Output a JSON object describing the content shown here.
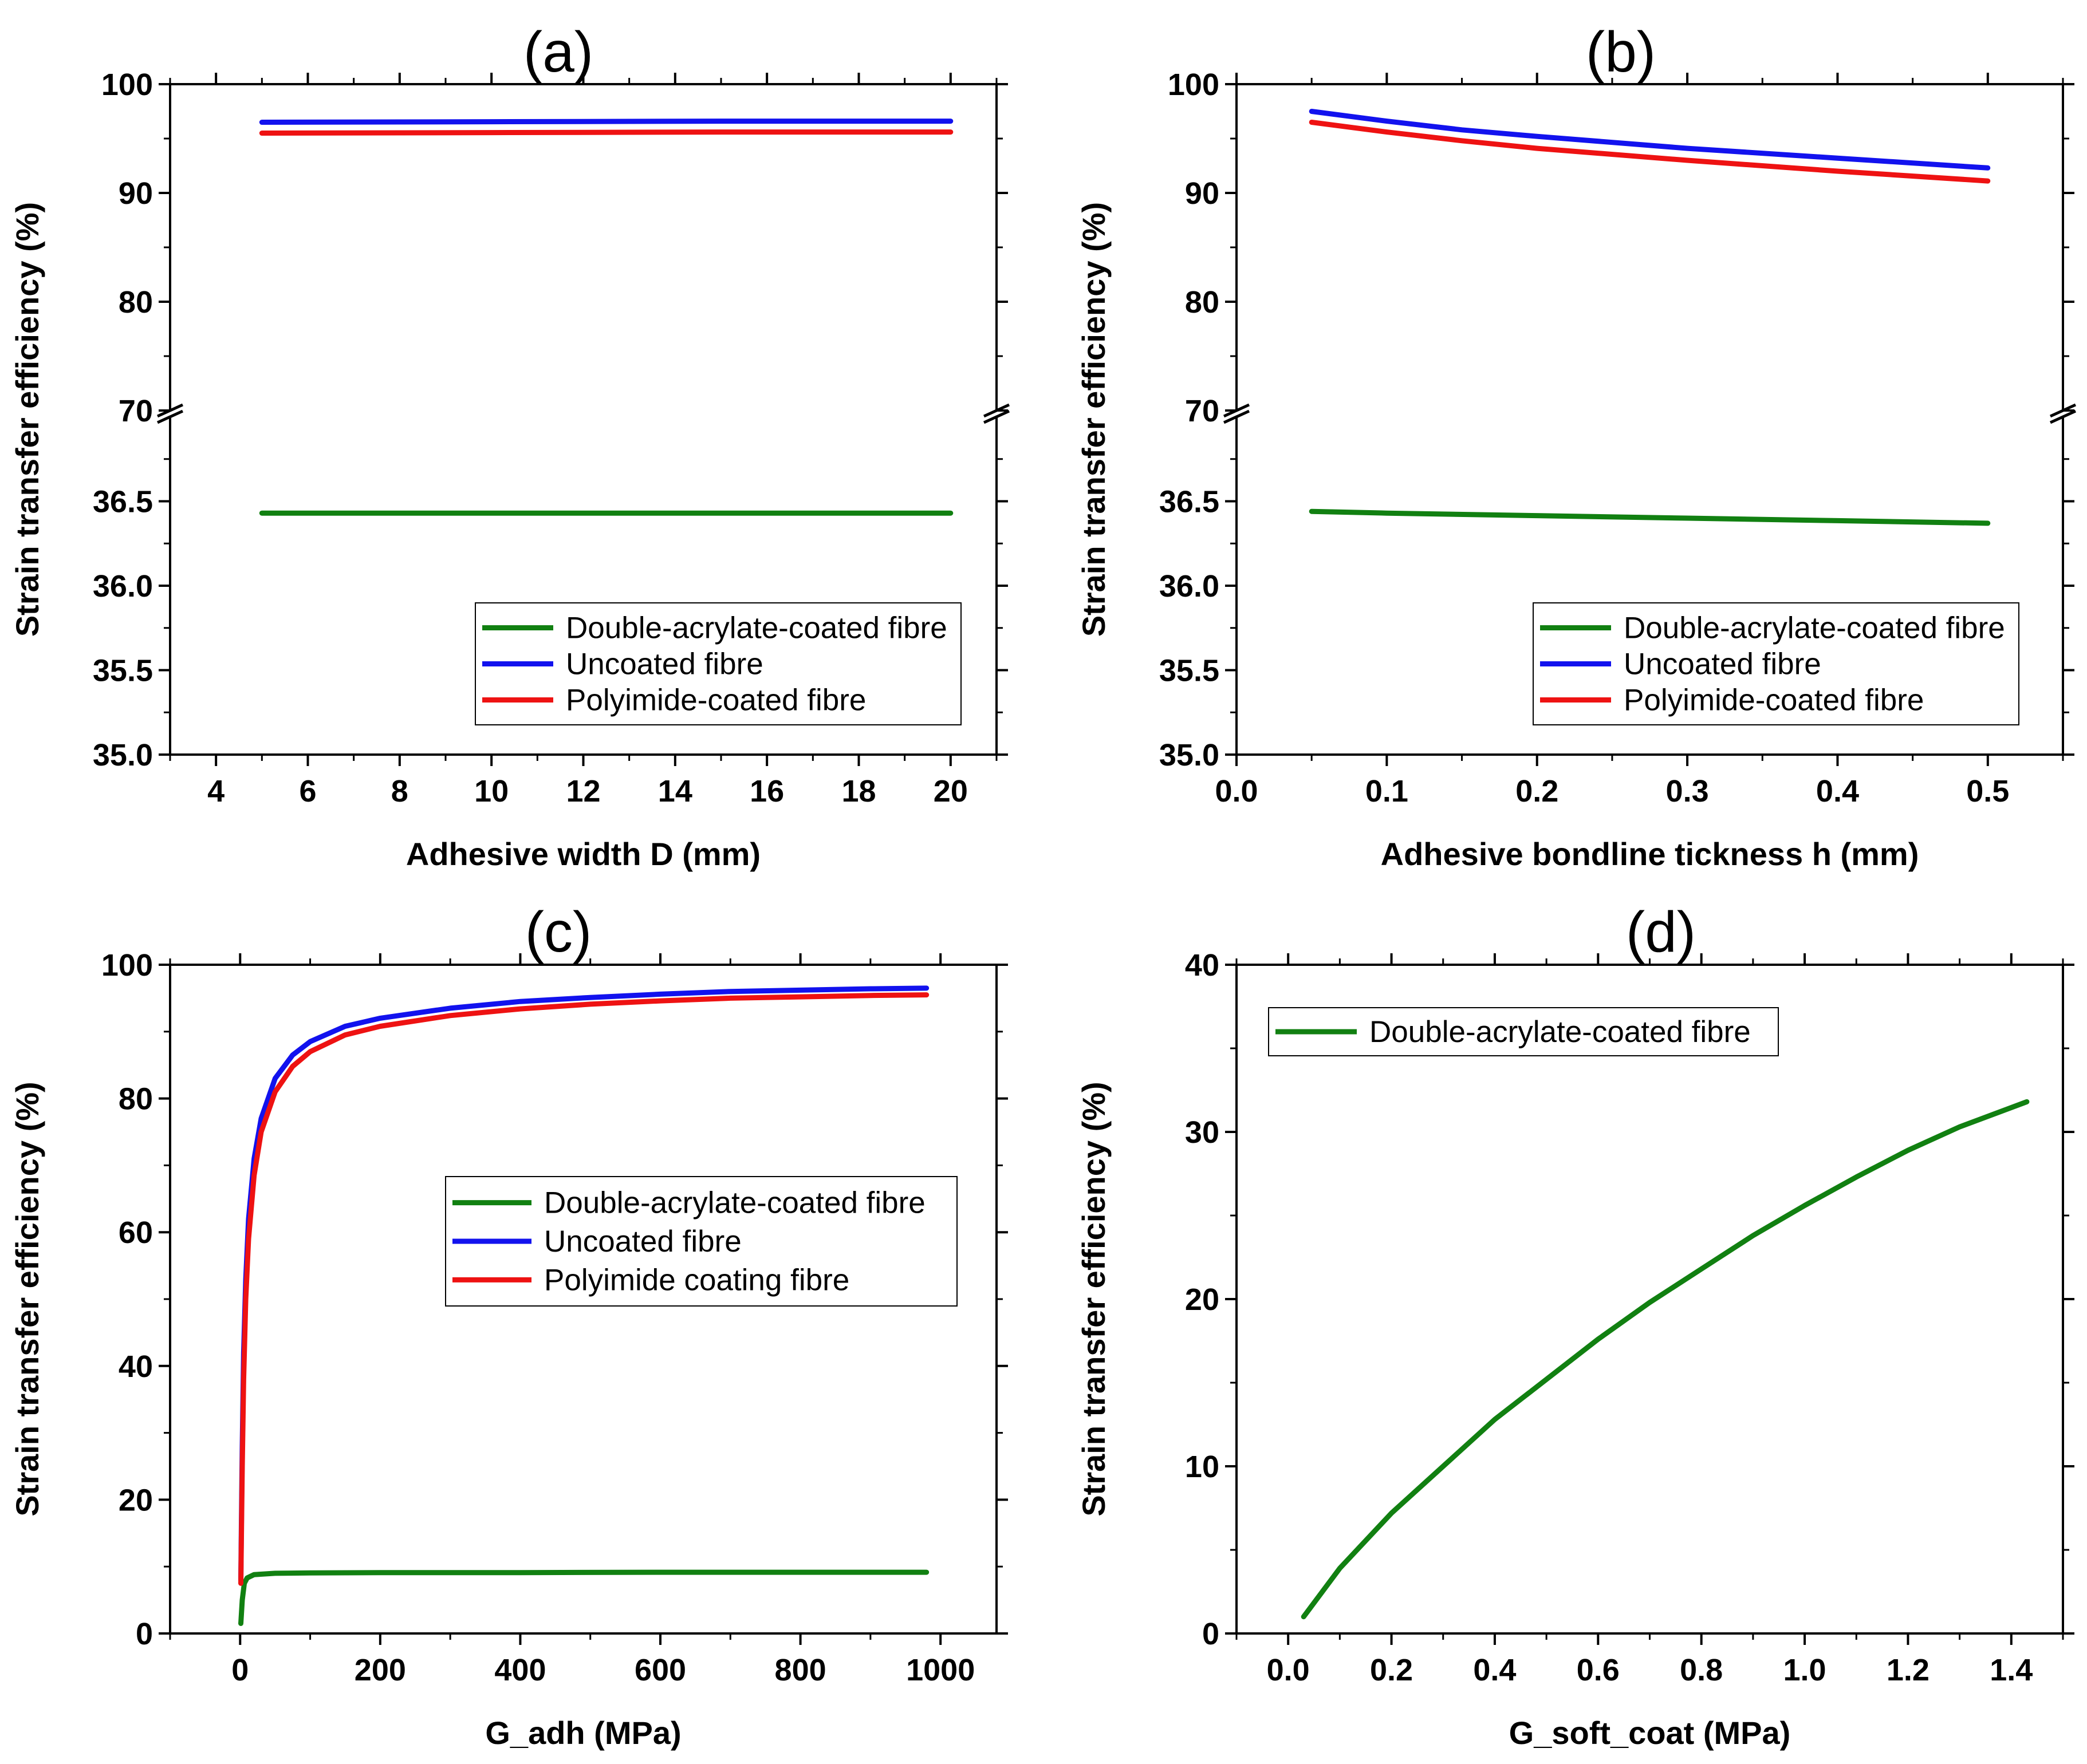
{
  "colors": {
    "green": "#118011",
    "blue": "#1212ee",
    "red": "#ee1212",
    "axis": "#000000"
  },
  "chart_data": [
    {
      "id": "a",
      "type": "line",
      "title": "(a)",
      "xlabel": "Adhesive width D (mm)",
      "ylabel": "Strain transfer efficiency (%)",
      "xlim": [
        3,
        21
      ],
      "x_ticks": [
        4,
        6,
        8,
        10,
        12,
        14,
        16,
        18,
        20
      ],
      "x_tick_labels": [
        "4",
        "6",
        "8",
        "10",
        "12",
        "14",
        "16",
        "18",
        "20"
      ],
      "y_break": {
        "lower": [
          35,
          37
        ],
        "upper": [
          70,
          100
        ]
      },
      "y_ticks": [
        35,
        35.5,
        36,
        36.5,
        70,
        80,
        90,
        100
      ],
      "y_tick_labels": [
        "35.0",
        "35.5",
        "36.0",
        "36.5",
        "70",
        "80",
        "90",
        "100"
      ],
      "legend_position": "lower-right",
      "series": [
        {
          "name": "Double-acrylate-coated fibre",
          "color": "#118011",
          "x": [
            5,
            10,
            15,
            20
          ],
          "y": [
            36.43,
            36.43,
            36.43,
            36.43
          ]
        },
        {
          "name": "Uncoated fibre",
          "color": "#1212ee",
          "x": [
            5,
            10,
            15,
            20
          ],
          "y": [
            96.5,
            96.55,
            96.6,
            96.6
          ]
        },
        {
          "name": "Polyimide-coated fibre",
          "color": "#ee1212",
          "x": [
            5,
            10,
            15,
            20
          ],
          "y": [
            95.5,
            95.55,
            95.6,
            95.6
          ]
        }
      ]
    },
    {
      "id": "b",
      "type": "line",
      "title": "(b)",
      "xlabel": "Adhesive bondline tickness h (mm)",
      "ylabel": "Strain transfer efficiency (%)",
      "xlim": [
        0,
        0.55
      ],
      "x_ticks": [
        0,
        0.1,
        0.2,
        0.3,
        0.4,
        0.5
      ],
      "x_tick_labels": [
        "0.0",
        "0.1",
        "0.2",
        "0.3",
        "0.4",
        "0.5"
      ],
      "y_break": {
        "lower": [
          35,
          37
        ],
        "upper": [
          70,
          100
        ]
      },
      "y_ticks": [
        35,
        35.5,
        36,
        36.5,
        70,
        80,
        90,
        100
      ],
      "y_tick_labels": [
        "35.0",
        "35.5",
        "36.0",
        "36.5",
        "70",
        "80",
        "90",
        "100"
      ],
      "legend_position": "lower-right",
      "series": [
        {
          "name": "Double-acrylate-coated fibre",
          "color": "#118011",
          "x": [
            0.05,
            0.1,
            0.2,
            0.3,
            0.4,
            0.5
          ],
          "y": [
            36.44,
            36.43,
            36.415,
            36.4,
            36.385,
            36.37
          ]
        },
        {
          "name": "Uncoated fibre",
          "color": "#1212ee",
          "x": [
            0.05,
            0.1,
            0.15,
            0.2,
            0.3,
            0.4,
            0.5
          ],
          "y": [
            97.5,
            96.6,
            95.8,
            95.2,
            94.1,
            93.2,
            92.3
          ]
        },
        {
          "name": "Polyimide-coated fibre",
          "color": "#ee1212",
          "x": [
            0.05,
            0.1,
            0.15,
            0.2,
            0.3,
            0.4,
            0.5
          ],
          "y": [
            96.5,
            95.6,
            94.8,
            94.1,
            93.0,
            92.0,
            91.1
          ]
        }
      ]
    },
    {
      "id": "c",
      "type": "line",
      "title": "(c)",
      "xlabel": "G_adh (MPa)",
      "ylabel": "Strain transfer efficiency (%)",
      "xlim": [
        -100,
        1080
      ],
      "ylim": [
        0,
        100
      ],
      "x_ticks": [
        0,
        200,
        400,
        600,
        800,
        1000
      ],
      "x_tick_labels": [
        "0",
        "200",
        "400",
        "600",
        "800",
        "1000"
      ],
      "y_ticks": [
        0,
        20,
        40,
        60,
        80,
        100
      ],
      "y_tick_labels": [
        "0",
        "20",
        "40",
        "60",
        "80",
        "100"
      ],
      "legend_position": "center-right",
      "series": [
        {
          "name": "Double-acrylate-coated fibre",
          "color": "#118011",
          "x": [
            1,
            3,
            6,
            10,
            20,
            50,
            100,
            200,
            400,
            600,
            800,
            980
          ],
          "y": [
            1.5,
            5,
            7.5,
            8.3,
            8.8,
            9.0,
            9.05,
            9.1,
            9.1,
            9.15,
            9.15,
            9.15
          ]
        },
        {
          "name": "Uncoated fibre",
          "color": "#1212ee",
          "x": [
            1,
            2,
            3,
            5,
            8,
            12,
            20,
            30,
            50,
            75,
            100,
            150,
            200,
            300,
            400,
            500,
            600,
            700,
            800,
            900,
            980
          ],
          "y": [
            8,
            18,
            28,
            42,
            53,
            62,
            71,
            77,
            83,
            86.5,
            88.5,
            90.8,
            92,
            93.5,
            94.5,
            95.1,
            95.6,
            96,
            96.2,
            96.4,
            96.5
          ]
        },
        {
          "name": "Polyimide coating fibre",
          "color": "#ee1212",
          "x": [
            1,
            2,
            3,
            5,
            8,
            12,
            20,
            30,
            50,
            75,
            100,
            150,
            200,
            300,
            400,
            500,
            600,
            700,
            800,
            900,
            980
          ],
          "y": [
            7.5,
            16,
            25,
            38,
            50,
            59,
            68.5,
            75,
            81,
            84.8,
            87,
            89.5,
            90.8,
            92.4,
            93.4,
            94.1,
            94.6,
            95,
            95.2,
            95.4,
            95.5
          ]
        }
      ]
    },
    {
      "id": "d",
      "type": "line",
      "title": "(d)",
      "xlabel": "G_soft_coat (MPa)",
      "ylabel": "Strain transfer efficiency (%)",
      "xlim": [
        -0.1,
        1.5
      ],
      "ylim": [
        0,
        40
      ],
      "x_ticks": [
        0,
        0.2,
        0.4,
        0.6,
        0.8,
        1.0,
        1.2,
        1.4
      ],
      "x_tick_labels": [
        "0.0",
        "0.2",
        "0.4",
        "0.6",
        "0.8",
        "1.0",
        "1.2",
        "1.4"
      ],
      "y_ticks": [
        0,
        10,
        20,
        30,
        40
      ],
      "y_tick_labels": [
        "0",
        "10",
        "20",
        "30",
        "40"
      ],
      "legend_position": "top-left",
      "series": [
        {
          "name": "Double-acrylate-coated fibre",
          "color": "#118011",
          "x": [
            0.03,
            0.1,
            0.2,
            0.3,
            0.4,
            0.5,
            0.6,
            0.7,
            0.8,
            0.9,
            1.0,
            1.1,
            1.2,
            1.3,
            1.43
          ],
          "y": [
            1.0,
            3.9,
            7.2,
            10.0,
            12.8,
            15.2,
            17.6,
            19.8,
            21.8,
            23.8,
            25.6,
            27.3,
            28.9,
            30.3,
            31.8
          ]
        }
      ]
    }
  ]
}
